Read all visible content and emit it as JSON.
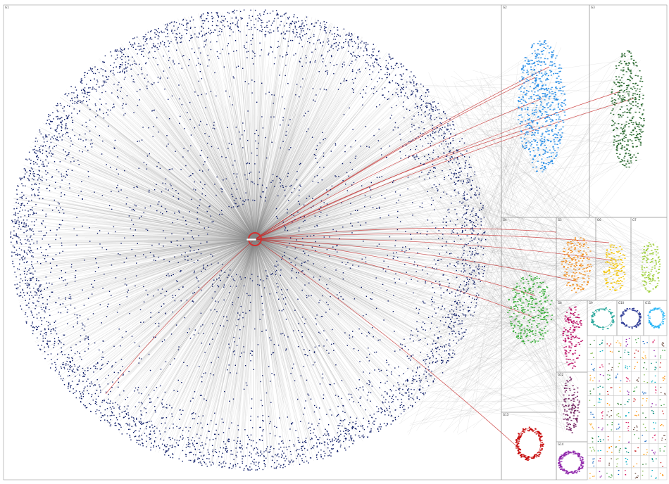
{
  "colors": {
    "hub_node": "#0b1a66",
    "edge_gray": "#8a8a8a",
    "edge_red": "#c62828",
    "highlight_circle": "#d32f2f",
    "frame": "#9a9a9a",
    "background": "#ffffff"
  },
  "groups": [
    {
      "id": "G1",
      "label": "G1",
      "color": "#0b1a66",
      "kind": "hub-circle"
    },
    {
      "id": "G2",
      "label": "G2",
      "color": "#1e88e5",
      "kind": "cluster"
    },
    {
      "id": "G3",
      "label": "G3",
      "color": "#1b5e20",
      "kind": "cluster"
    },
    {
      "id": "G4",
      "label": "G4",
      "color": "#2eaa2e",
      "kind": "cluster"
    },
    {
      "id": "G5",
      "label": "G5",
      "color": "#ef8a17",
      "kind": "cluster"
    },
    {
      "id": "G6",
      "label": "G6",
      "color": "#f2c200",
      "kind": "cluster"
    },
    {
      "id": "G7",
      "label": "G7",
      "color": "#9acd32",
      "kind": "cluster"
    },
    {
      "id": "G8",
      "label": "G8",
      "color": "#b8005c",
      "kind": "cluster"
    },
    {
      "id": "G9",
      "label": "G9",
      "color": "#26a69a",
      "kind": "ring"
    },
    {
      "id": "G10",
      "label": "G10",
      "color": "#283593",
      "kind": "ring"
    },
    {
      "id": "G11",
      "label": "G11",
      "color": "#29b6f6",
      "kind": "ring"
    },
    {
      "id": "G12",
      "label": "G12",
      "color": "#6d1b5a",
      "kind": "cluster"
    },
    {
      "id": "G13",
      "label": "G13",
      "color": "#c40000",
      "kind": "ring-dense"
    },
    {
      "id": "G14",
      "label": "G14",
      "color": "#8e24aa",
      "kind": "ring-dense"
    }
  ],
  "small_group_colors": [
    "#2e7d32",
    "#00897b",
    "#c62828",
    "#f9a825",
    "#8e24aa",
    "#43a047",
    "#1565c0",
    "#d81b60",
    "#6d4c41",
    "#7cb342",
    "#00acc1",
    "#fb8c00"
  ],
  "red_edge_count": 14
}
